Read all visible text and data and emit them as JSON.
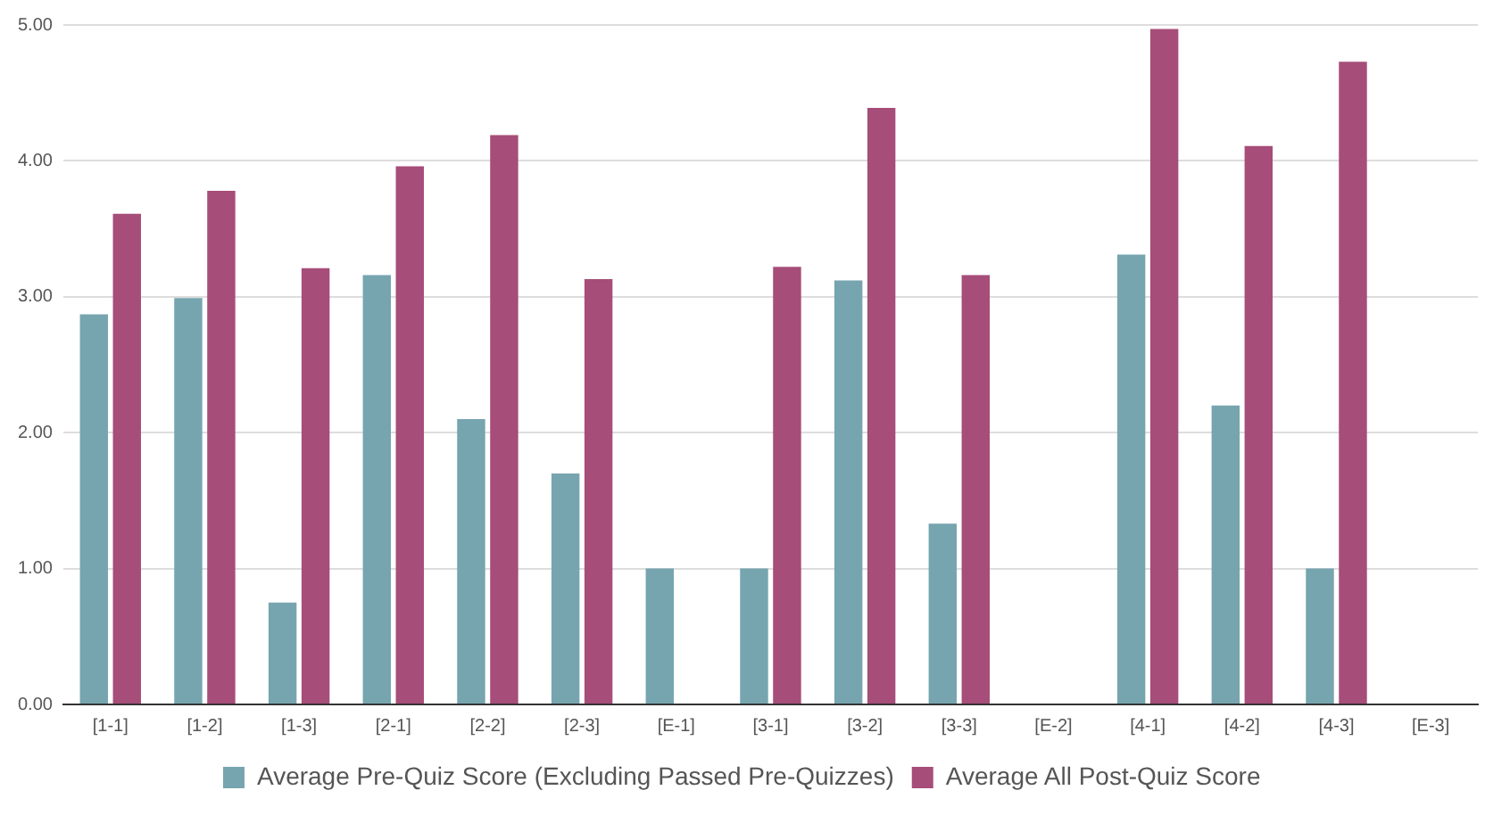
{
  "chart_data": {
    "type": "bar",
    "categories": [
      "[1-1]",
      "[1-2]",
      "[1-3]",
      "[2-1]",
      "[2-2]",
      "[2-3]",
      "[E-1]",
      "[3-1]",
      "[3-2]",
      "[3-3]",
      "[E-2]",
      "[4-1]",
      "[4-2]",
      "[4-3]",
      "[E-3]"
    ],
    "series": [
      {
        "name": "Average Pre-Quiz Score (Excluding Passed Pre-Quizzes)",
        "color": "#76a5af",
        "values": [
          2.87,
          2.99,
          0.75,
          3.16,
          2.1,
          1.7,
          1.0,
          1.0,
          3.12,
          1.33,
          null,
          3.31,
          2.2,
          1.0,
          null
        ]
      },
      {
        "name": "Average All Post-Quiz Score",
        "color": "#a64d79",
        "values": [
          3.61,
          3.78,
          3.21,
          3.96,
          4.19,
          3.13,
          null,
          3.22,
          4.39,
          3.16,
          null,
          4.97,
          4.11,
          4.73,
          null
        ]
      }
    ],
    "ylim": [
      0,
      5
    ],
    "yticks": [
      {
        "value": 0,
        "label": "0.00"
      },
      {
        "value": 1,
        "label": "1.00"
      },
      {
        "value": 2,
        "label": "2.00"
      },
      {
        "value": 3,
        "label": "3.00"
      },
      {
        "value": 4,
        "label": "4.00"
      },
      {
        "value": 5,
        "label": "5.00"
      }
    ],
    "grid": "y",
    "legend": "bottom"
  }
}
